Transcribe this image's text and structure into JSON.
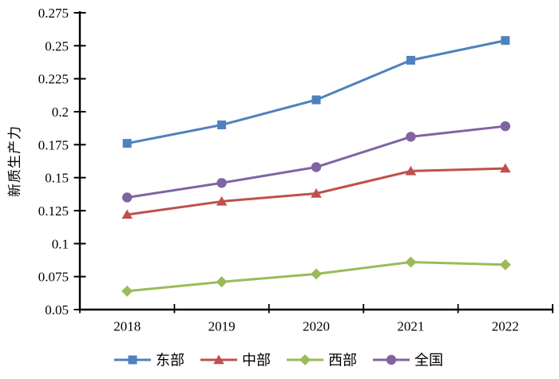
{
  "chart_data": {
    "type": "line",
    "title": "",
    "xlabel": "",
    "ylabel": "新质生产力",
    "categories": [
      "2018",
      "2019",
      "2020",
      "2021",
      "2022"
    ],
    "series": [
      {
        "key": "east",
        "name": "东部",
        "marker": "square",
        "color": "#4F81BD",
        "values": [
          0.176,
          0.19,
          0.209,
          0.239,
          0.254
        ]
      },
      {
        "key": "central",
        "name": "中部",
        "marker": "triangle",
        "color": "#C0504D",
        "values": [
          0.122,
          0.132,
          0.138,
          0.155,
          0.157
        ]
      },
      {
        "key": "west",
        "name": "西部",
        "marker": "diamond",
        "color": "#9BBB59",
        "values": [
          0.064,
          0.071,
          0.077,
          0.086,
          0.084
        ]
      },
      {
        "key": "national",
        "name": "全国",
        "marker": "circle",
        "color": "#8064A2",
        "values": [
          0.135,
          0.146,
          0.158,
          0.181,
          0.189
        ]
      }
    ],
    "ylim": [
      0.05,
      0.275
    ],
    "ytick_labels": [
      "0.05",
      "0.075",
      "0.1",
      "0.125",
      "0.15",
      "0.175",
      "0.2",
      "0.225",
      "0.25",
      "0.275"
    ],
    "grid": false,
    "legend_position": "bottom",
    "axis_color": "#000000",
    "background_color": "#FFFFFF"
  }
}
